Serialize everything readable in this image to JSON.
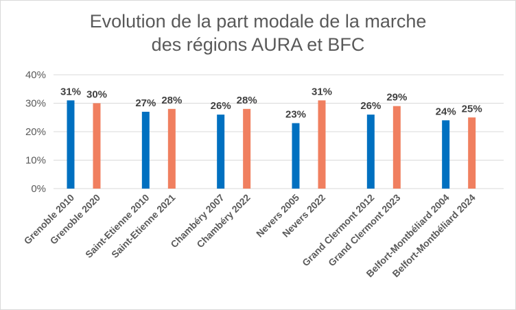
{
  "chart_data": {
    "type": "bar",
    "title_lines": [
      "Evolution de la part modale de la marche",
      "des régions AURA et BFC"
    ],
    "categories": [
      "Grenoble 2010",
      "Grenoble 2020",
      "Saint-Etienne 2010",
      "Saint-Etienne 2021",
      "Chambéry 2007",
      "Chambéry 2022",
      "Nevers 2005",
      "Nevers 2022",
      "Grand Clermont 2012",
      "Grand Clermont 2023",
      "Belfort-Montbéliard 2004",
      "Belfort-Montbéliard 2024"
    ],
    "values": [
      31,
      30,
      27,
      28,
      26,
      28,
      23,
      31,
      26,
      29,
      24,
      25
    ],
    "data_labels": [
      "31%",
      "30%",
      "27%",
      "28%",
      "26%",
      "28%",
      "23%",
      "31%",
      "26%",
      "29%",
      "24%",
      "25%"
    ],
    "ylim": [
      0,
      40
    ],
    "yticks": [
      0,
      10,
      20,
      30,
      40
    ],
    "ytick_labels": [
      "0%",
      "10%",
      "20%",
      "30%",
      "40%"
    ],
    "grid": true,
    "legend": "none",
    "colors": {
      "first_survey": "#0070c0",
      "second_survey": "#f07f5f",
      "gridline": "#d9d9d9",
      "text": "#595959"
    }
  }
}
